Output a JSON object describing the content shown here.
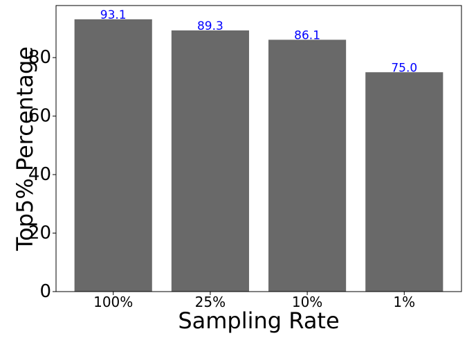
{
  "chart_data": {
    "type": "bar",
    "title": "",
    "xlabel": "Sampling Rate",
    "ylabel": "Top5% Percentage",
    "categories": [
      "100%",
      "25%",
      "10%",
      "1%"
    ],
    "values": [
      93.1,
      89.3,
      86.1,
      75.0
    ],
    "value_labels": [
      "93.1",
      "89.3",
      "86.1",
      "75.0"
    ],
    "yticks": [
      0,
      20,
      40,
      60,
      80
    ],
    "ylim": [
      0,
      97.8
    ],
    "grid": false,
    "legend": "none",
    "bar_color": "#696969",
    "value_label_color": "#0000ff",
    "axis_color": "#000000"
  }
}
